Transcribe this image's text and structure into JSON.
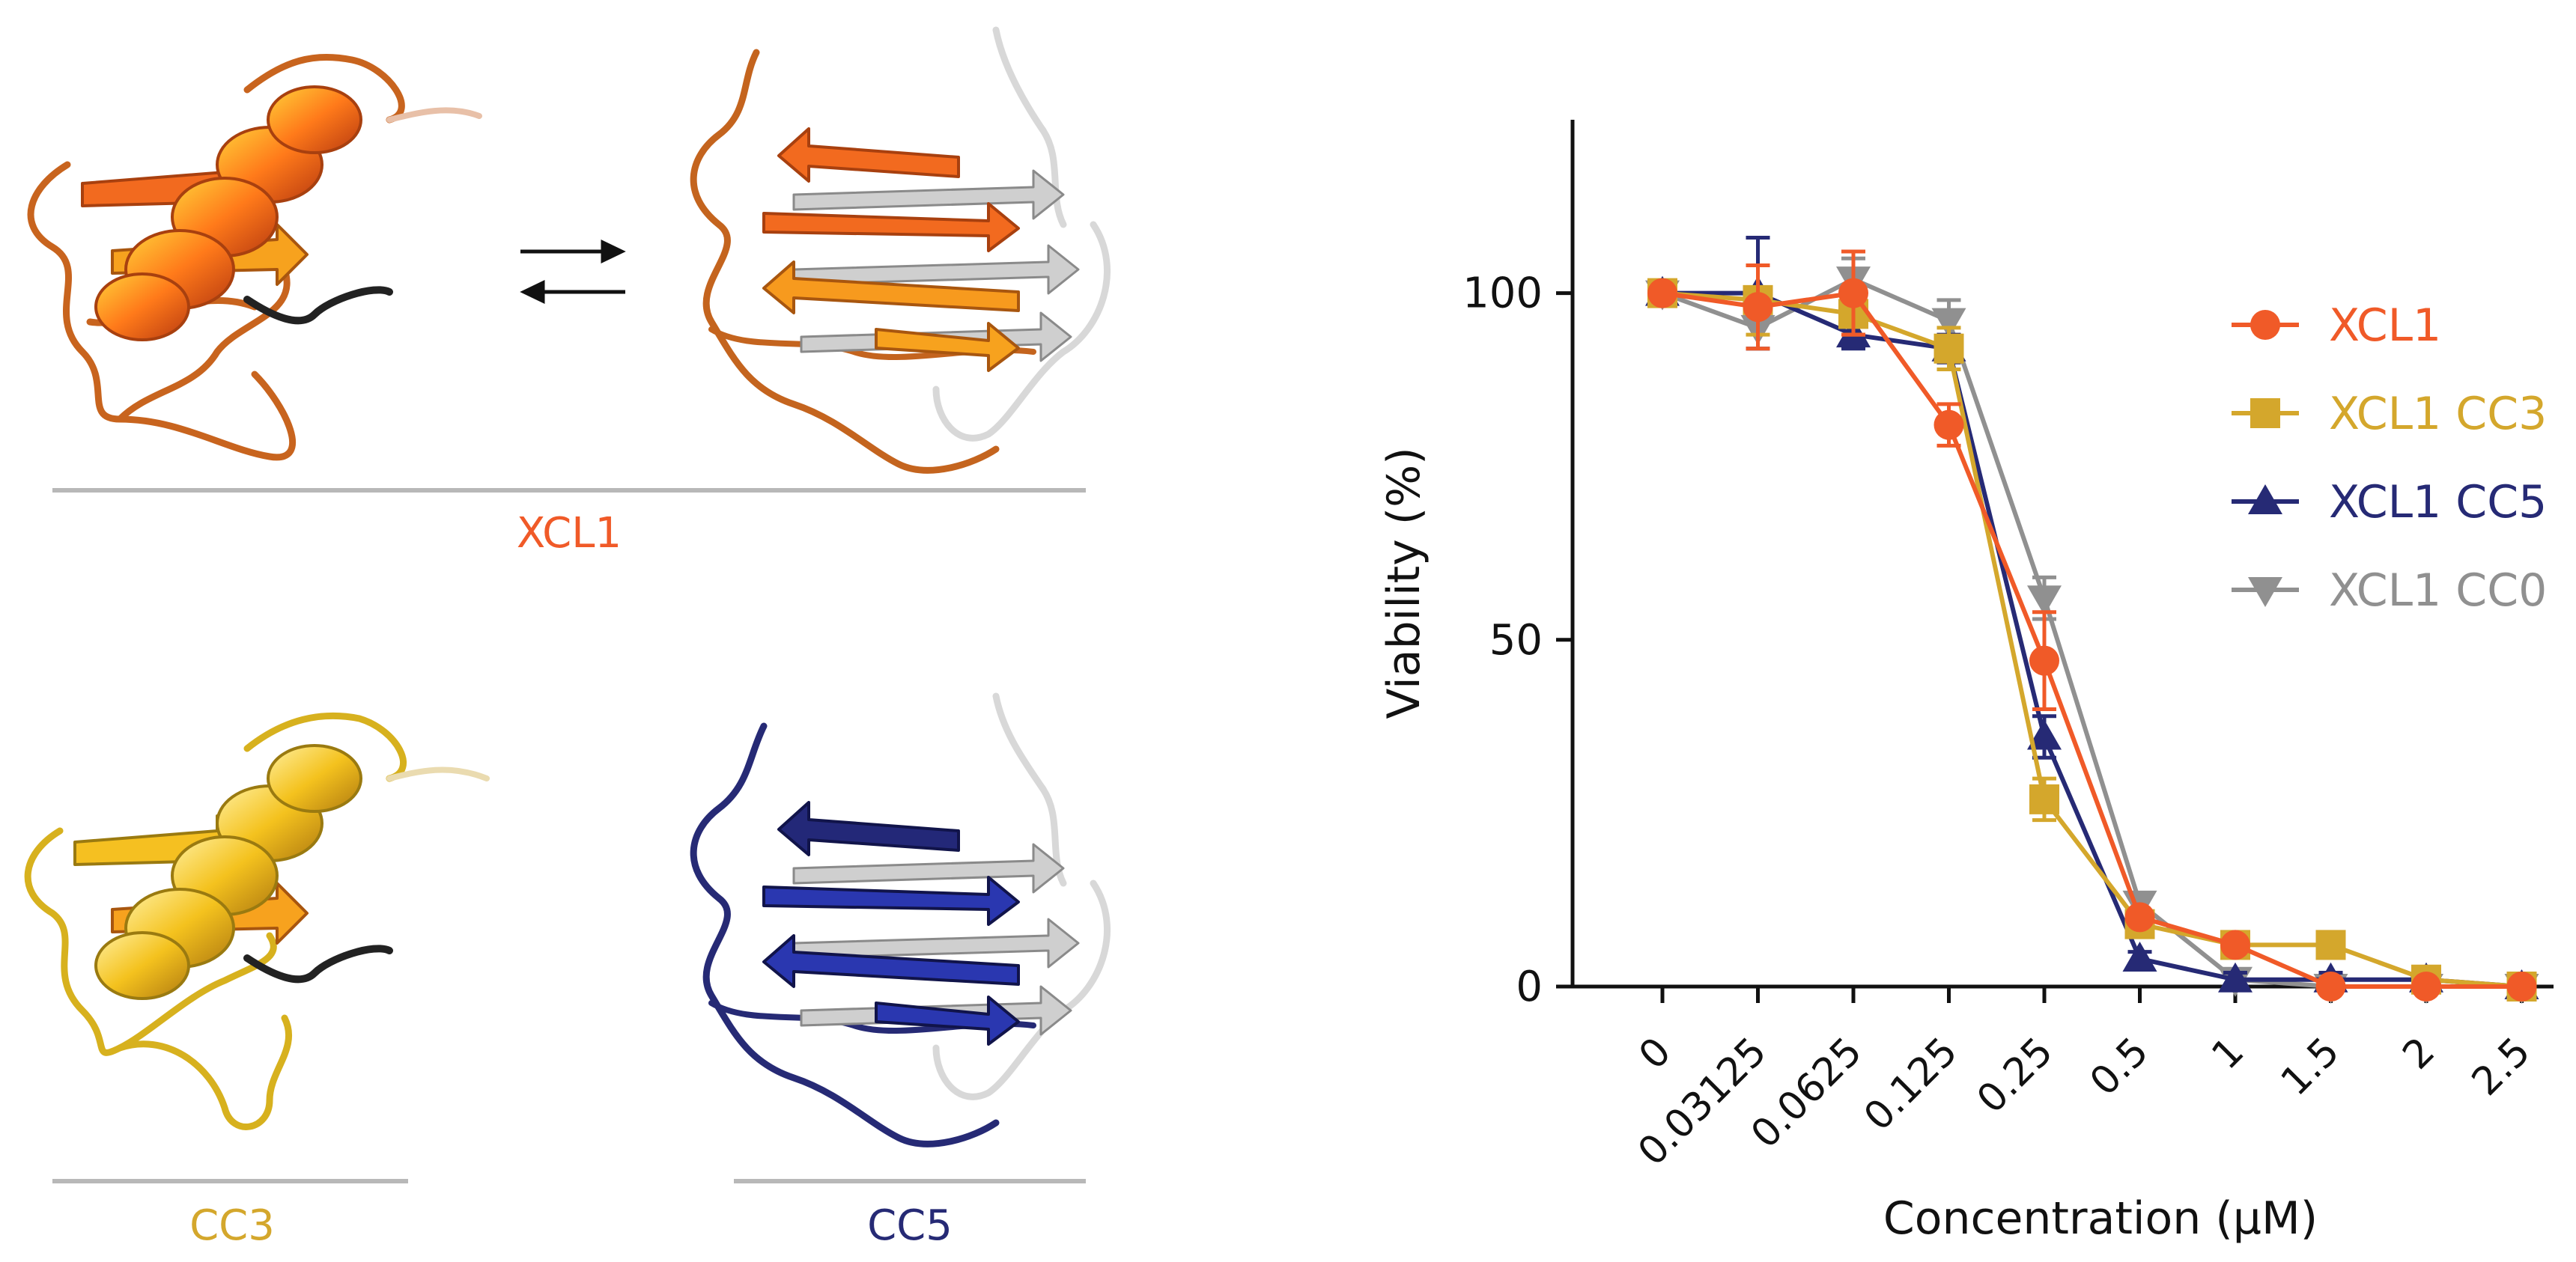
{
  "panels": {
    "xcl1": {
      "label": "XCL1",
      "color": "#f05a28"
    },
    "cc3": {
      "label": "CC3",
      "color": "#d4a72c"
    },
    "cc5": {
      "label": "CC5",
      "color": "#262a75"
    },
    "divider_color": "#b8b8b8"
  },
  "chart_data": {
    "type": "line",
    "title": "",
    "xlabel": "Concentration (μM)",
    "ylabel": "Viability (%)",
    "categories": [
      "0",
      "0.03125",
      "0.0625",
      "0.125",
      "0.25",
      "0.5",
      "1",
      "1.5",
      "2",
      "2.5"
    ],
    "ylim": [
      0,
      125
    ],
    "yticks": [
      0,
      50,
      100
    ],
    "grid": false,
    "legend_position": "top-right",
    "series": [
      {
        "name": "XCL1",
        "color": "#f05a28",
        "marker": "circle",
        "values": [
          100,
          98,
          100,
          81,
          47,
          10,
          6,
          0,
          0,
          0
        ],
        "errors": [
          0,
          6,
          6,
          3,
          7,
          1,
          1,
          0,
          0,
          0
        ]
      },
      {
        "name": "XCL1 CC3",
        "color": "#d4a72c",
        "marker": "square",
        "values": [
          100,
          99,
          97,
          92,
          27,
          9,
          6,
          6,
          1,
          0
        ],
        "errors": [
          0,
          5,
          3,
          3,
          3,
          1,
          1,
          1,
          1,
          0
        ]
      },
      {
        "name": "XCL1 CC5",
        "color": "#262a75",
        "marker": "triangle-up",
        "values": [
          100,
          100,
          94,
          92,
          36,
          4,
          1,
          1,
          1,
          0
        ],
        "errors": [
          0,
          8,
          2,
          2,
          3,
          1,
          1,
          1,
          1,
          0
        ]
      },
      {
        "name": "XCL1 CC0",
        "color": "#909090",
        "marker": "triangle-down",
        "values": [
          100,
          95,
          102,
          96,
          56,
          12,
          1,
          0,
          0,
          0
        ],
        "errors": [
          0,
          3,
          3,
          3,
          3,
          1,
          1,
          0,
          0,
          0
        ]
      }
    ]
  }
}
